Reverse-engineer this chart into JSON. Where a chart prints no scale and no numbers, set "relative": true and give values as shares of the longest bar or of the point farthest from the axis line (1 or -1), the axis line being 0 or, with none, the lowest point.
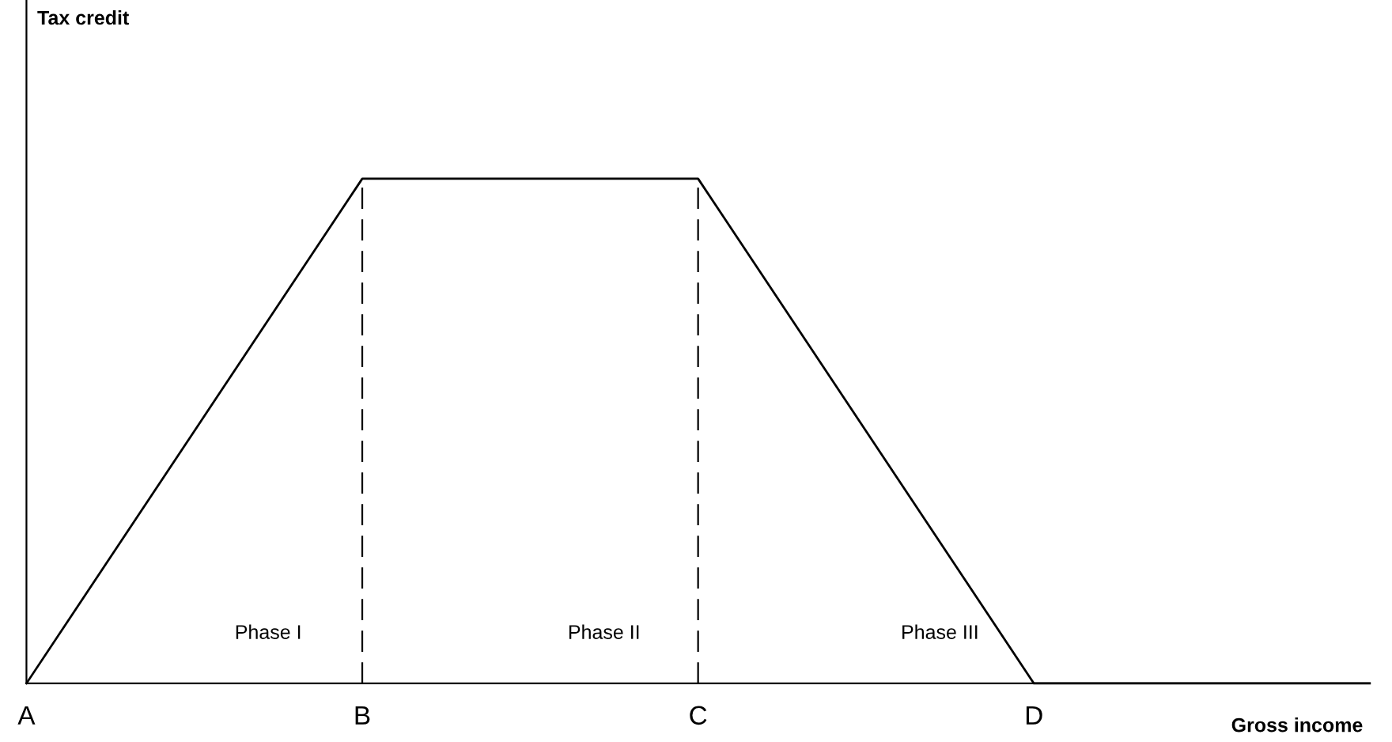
{
  "chart_data": {
    "type": "line",
    "relative": true,
    "xlabel": "Gross income",
    "categories": [
      "A",
      "B",
      "C",
      "D",
      null
    ],
    "series": [
      {
        "color": "#000000",
        "values": [
          0,
          1,
          1,
          0,
          0
        ]
      }
    ],
    "ref_lines": [
      {
        "axis": "x",
        "value": "B",
        "line_style": "dashed",
        "color": "#000000"
      },
      {
        "axis": "x",
        "value": "C",
        "line_style": "dashed",
        "color": "#000000"
      }
    ],
    "annotations": [
      "Tax credit",
      "Phase I",
      "Phase II",
      "Phase III"
    ],
    "grid": false,
    "legend": false,
    "marker": "none",
    "line_style": "solid"
  }
}
